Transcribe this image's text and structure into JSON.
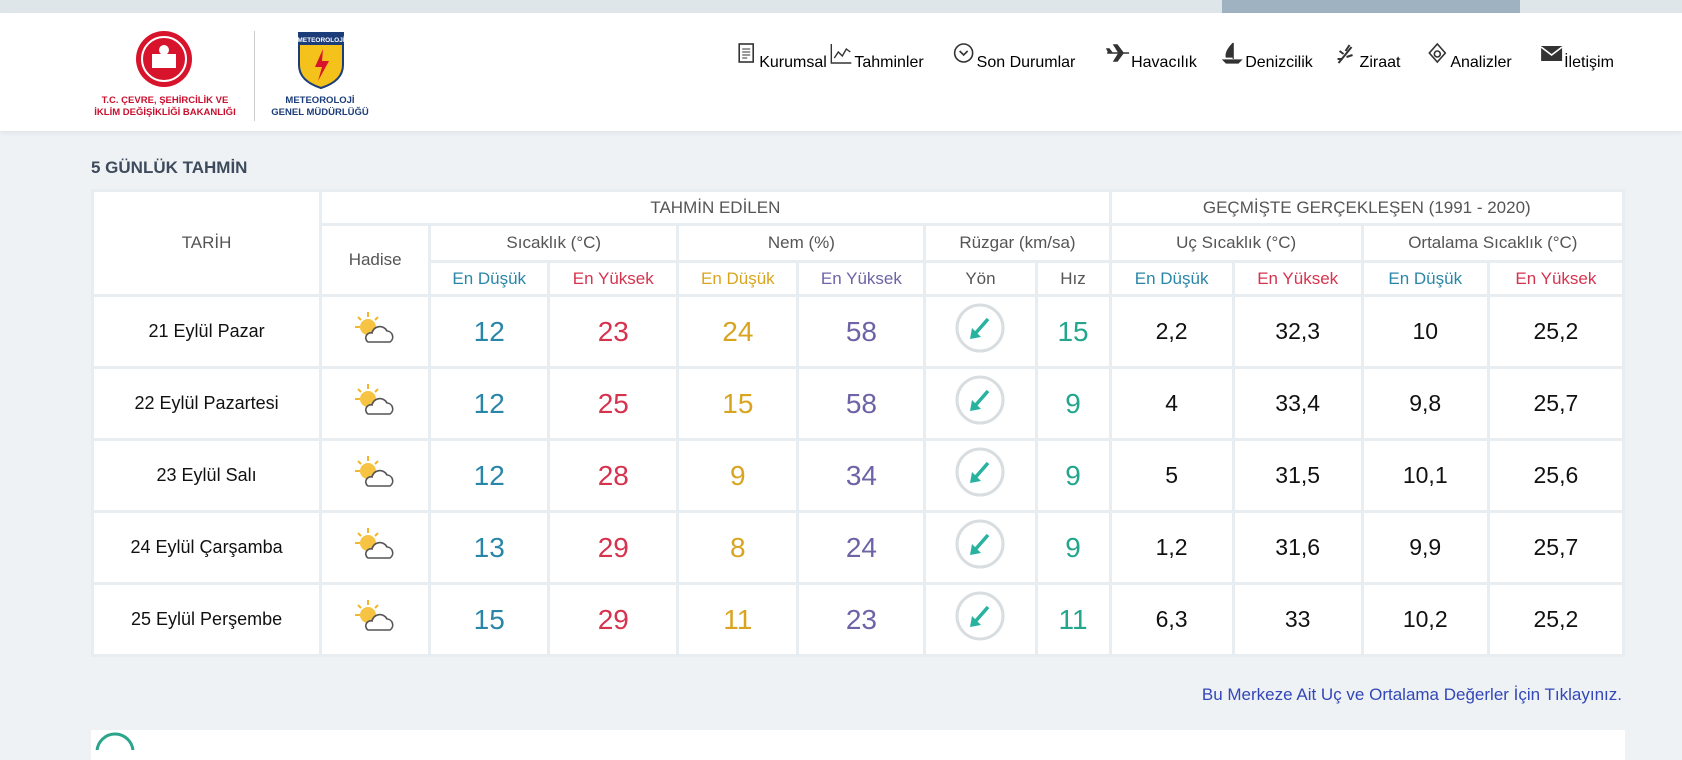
{
  "header": {
    "ministry_logo": {
      "line1": "T.C. ÇEVRE, ŞEHİRCİLİK VE",
      "line2": "İKLİM DEĞİŞİKLİĞİ BAKANLIĞI"
    },
    "mgm_logo": {
      "badge": "METEOROLOJİ",
      "line1": "METEOROLOJİ",
      "line2": "GENEL MÜDÜRLÜĞÜ"
    }
  },
  "nav": [
    "Kurumsal",
    "Tahminler",
    "Son Durumlar",
    "Havacılık",
    "Denizcilik",
    "Ziraat",
    "Analizler",
    "İletişim"
  ],
  "forecast": {
    "title": "5 GÜNLÜK TAHMİN",
    "headers": {
      "date": "TARİH",
      "forecast": "TAHMİN EDİLEN",
      "history": "GEÇMİŞTE GERÇEKLEŞEN (1991 - 2020)",
      "event": "Hadise",
      "temperature": "Sıcaklık (°C)",
      "humidity": "Nem (%)",
      "wind": "Rüzgar (km/sa)",
      "extreme": "Uç Sıcaklık (°C)",
      "average": "Ortalama Sıcaklık (°C)"
    },
    "sub_headers": [
      "En Düşük",
      "En Yüksek",
      "En Düşük",
      "En Yüksek",
      "Yön",
      "Hız",
      "En Düşük",
      "En Yüksek",
      "En Düşük",
      "En Yüksek"
    ],
    "rows": [
      [
        "21 Eylül Pazar",
        "12",
        "23",
        "24",
        "58",
        "15",
        "2,2",
        "32,3",
        "10",
        "25,2"
      ],
      [
        "22 Eylül Pazartesi",
        "12",
        "25",
        "15",
        "58",
        "9",
        "4",
        "33,4",
        "9,8",
        "25,7"
      ],
      [
        "23 Eylül Salı",
        "12",
        "28",
        "9",
        "34",
        "9",
        "5",
        "31,5",
        "10,1",
        "25,6"
      ],
      [
        "24 Eylül Çarşamba",
        "13",
        "29",
        "8",
        "24",
        "9",
        "1,2",
        "31,6",
        "9,9",
        "25,7"
      ],
      [
        "25 Eylül Perşembe",
        "15",
        "29",
        "11",
        "23",
        "11",
        "6,3",
        "33",
        "10,2",
        "25,2"
      ]
    ]
  },
  "link": "Bu Merkeze Ait Uç ve Ortalama Değerler İçin Tıklayınız."
}
